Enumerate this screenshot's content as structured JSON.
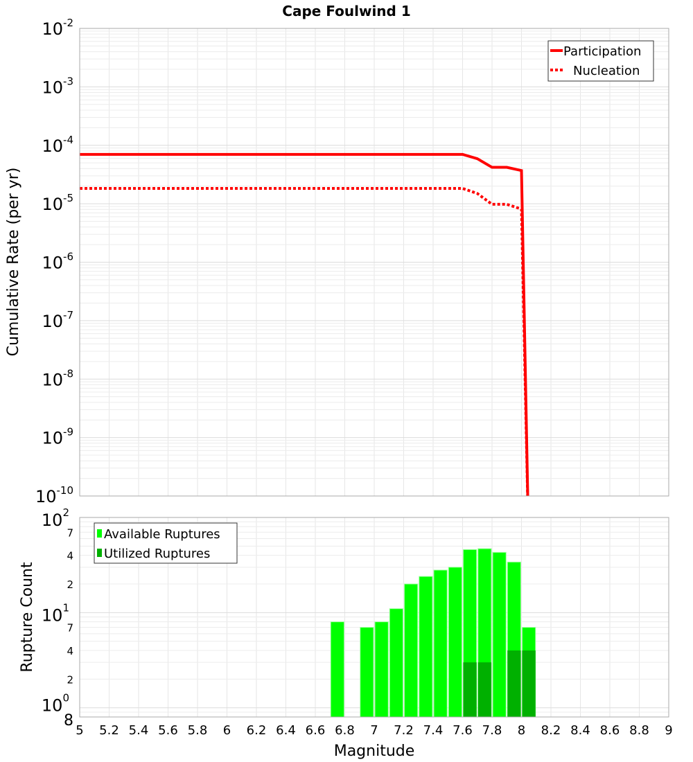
{
  "chart_data": [
    {
      "type": "line",
      "title": "Cape Foulwind 1",
      "xlabel": "Magnitude",
      "ylabel": "Cumulative Rate (per yr)",
      "yscale": "log",
      "ylim": [
        1e-10,
        0.01
      ],
      "xlim": [
        5,
        9
      ],
      "ytick_exponents": [
        "-10",
        "-9",
        "-8",
        "-7",
        "-6",
        "-5",
        "-4",
        "-3",
        "-2"
      ],
      "grid": true,
      "legend_position": "top-right",
      "series": [
        {
          "name": "Participation",
          "style": "solid",
          "color": "#ff0000",
          "x": [
            5.0,
            7.6,
            7.7,
            7.8,
            7.9,
            8.0,
            8.05
          ],
          "y": [
            7e-05,
            7e-05,
            5.9e-05,
            4.2e-05,
            4.2e-05,
            3.7e-05,
            1e-11
          ]
        },
        {
          "name": "Nucleation",
          "style": "dotted",
          "color": "#ff0000",
          "x": [
            5.0,
            7.6,
            7.7,
            7.8,
            7.9,
            8.0,
            8.05
          ],
          "y": [
            1.83e-05,
            1.83e-05,
            1.5e-05,
            9.8e-06,
            9.8e-06,
            8.1e-06,
            1e-11
          ]
        }
      ]
    },
    {
      "type": "bar",
      "xlabel": "Magnitude",
      "ylabel": "Rupture Count",
      "yscale": "log",
      "ylim": [
        0.8,
        100
      ],
      "xlim": [
        5,
        9
      ],
      "xticks": [
        "5",
        "5.2",
        "5.4",
        "5.6",
        "5.8",
        "6",
        "6.2",
        "6.4",
        "6.6",
        "6.8",
        "7",
        "7.2",
        "7.4",
        "7.6",
        "7.8",
        "8",
        "8.2",
        "8.4",
        "8.6",
        "8.8",
        "9"
      ],
      "ytick_major": [
        {
          "base": "10",
          "exp": "0",
          "value": 1
        },
        {
          "base": "10",
          "exp": "1",
          "value": 10
        },
        {
          "base": "10",
          "exp": "2",
          "value": 100
        }
      ],
      "ytick_minor": [
        {
          "label": "2",
          "value": 2
        },
        {
          "label": "4",
          "value": 4
        },
        {
          "label": "7",
          "value": 7
        },
        {
          "label": "2",
          "value": 20
        },
        {
          "label": "4",
          "value": 40
        },
        {
          "label": "7",
          "value": 70
        },
        {
          "label": "8",
          "value": 0.8
        }
      ],
      "legend_position": "top-left",
      "bin_width": 0.1,
      "series": [
        {
          "name": "Available Ruptures",
          "color": "#00ff00",
          "x": [
            6.75,
            6.95,
            7.05,
            7.15,
            7.25,
            7.35,
            7.45,
            7.55,
            7.65,
            7.75,
            7.85,
            7.95,
            8.05
          ],
          "values": [
            8,
            7,
            8,
            11,
            20,
            24,
            28,
            30,
            46,
            47,
            43,
            34,
            7
          ]
        },
        {
          "name": "Utilized Ruptures",
          "color": "#00b000",
          "x": [
            7.65,
            7.75,
            7.95,
            8.05
          ],
          "values": [
            3,
            3,
            4,
            4
          ]
        }
      ]
    }
  ]
}
